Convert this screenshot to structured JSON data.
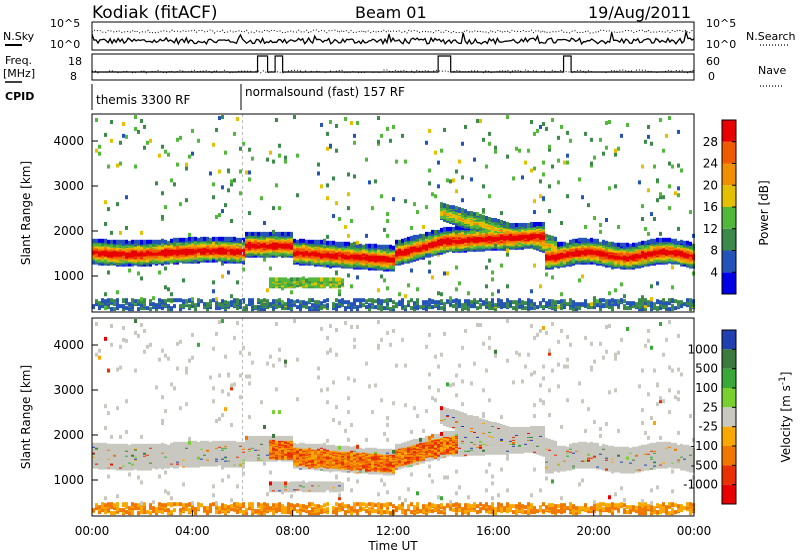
{
  "header": {
    "site": "Kodiak (fitACF)",
    "beam": "Beam 01",
    "date": "19/Aug/2011"
  },
  "top_panels": {
    "nsky_label": "N.Sky",
    "nsearch_label": "N.Search",
    "nsky_ticks": [
      "10^5",
      "10^0"
    ],
    "nsearch_ticks": [
      "10^5",
      "10^0"
    ],
    "freq_label": "Freq.",
    "freq_unit": "[MHz]",
    "freq_ticks": [
      "18",
      "8"
    ],
    "nave_label": "Nave",
    "nave_ticks": [
      "60",
      "0"
    ],
    "cpid_label": "CPID",
    "cpid_segments": [
      {
        "label": "themis 3300 RF",
        "start_hour": 0
      },
      {
        "label": "normalsound (fast) 157 RF",
        "start_hour": 6
      }
    ]
  },
  "chart_data": [
    {
      "type": "heatmap",
      "title": "",
      "xlabel": "",
      "ylabel": "Slant Range [km]",
      "xlim": [
        0,
        24
      ],
      "ylim": [
        200,
        4600
      ],
      "yticks": [
        1000,
        2000,
        3000,
        4000
      ],
      "colorbar": {
        "label": "Power [dB]",
        "range": [
          0,
          32
        ],
        "ticks": [
          "4",
          "8",
          "12",
          "16",
          "20",
          "24",
          "28"
        ],
        "colors": [
          "#0000e6",
          "#2454b8",
          "#3b8a4a",
          "#52b83c",
          "#e5c000",
          "#f09000",
          "#f05a00",
          "#e80000"
        ]
      },
      "features": [
        {
          "description": "main echo band",
          "start_hour": 0,
          "end_hour": 24,
          "range_km": [
            1200,
            1800
          ],
          "typical_dB": 22
        },
        {
          "description": "oblique band",
          "start_hour": 14,
          "end_hour": 18,
          "range_km": [
            1600,
            2600
          ],
          "typical_dB": 12
        }
      ]
    },
    {
      "type": "heatmap",
      "title": "",
      "xlabel": "Time UT",
      "ylabel": "Slant Range [km]",
      "xlim": [
        0,
        24
      ],
      "ylim": [
        200,
        4600
      ],
      "yticks": [
        1000,
        2000,
        3000,
        4000
      ],
      "xticks": [
        "00:00",
        "04:00",
        "08:00",
        "12:00",
        "16:00",
        "20:00",
        "00:00"
      ],
      "colorbar": {
        "label": "Velocity [m s^-1]",
        "ticks": [
          "1000",
          "500",
          "100",
          "25",
          "-25",
          "-100",
          "-500",
          "-1000"
        ],
        "colors": [
          "#2040b0",
          "#3c7a3c",
          "#38a838",
          "#78d030",
          "#c8c8c0",
          "#f8a800",
          "#f07800",
          "#e83000",
          "#e80000"
        ]
      },
      "features": [
        {
          "description": "ground scatter (grey)",
          "start_hour": 0,
          "end_hour": 24,
          "range_km": [
            1200,
            1800
          ]
        },
        {
          "description": "negative velocity band",
          "start_hour": 7,
          "end_hour": 14,
          "range_km": [
            1300,
            1700
          ]
        }
      ]
    }
  ]
}
